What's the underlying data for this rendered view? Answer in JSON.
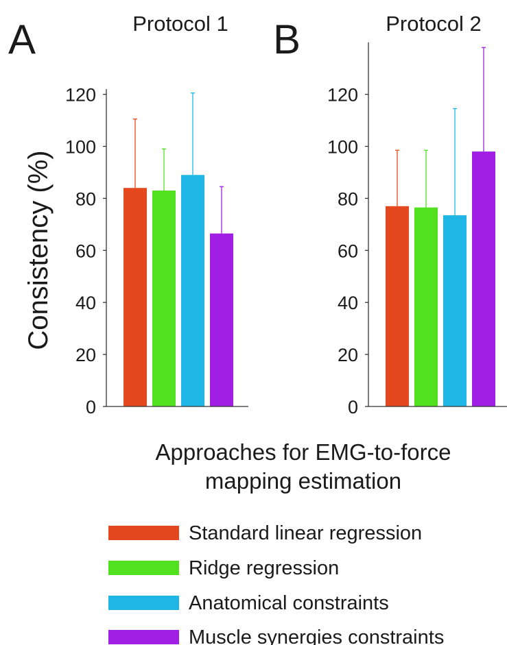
{
  "chart_data": {
    "type": "bar",
    "ylabel": "Consistency (%)",
    "xlabel_lines": [
      "Approaches for EMG-to-force",
      "mapping estimation"
    ],
    "ylim": [
      0,
      140
    ],
    "yticks": [
      0,
      20,
      40,
      60,
      80,
      100,
      120
    ],
    "grid": false,
    "legend_position": "bottom",
    "colors": [
      "#e4481e",
      "#52e11f",
      "#1fb6e6",
      "#a11fe4"
    ],
    "series_names": [
      "Standard linear regression",
      "Ridge regression",
      "Anatomical constraints",
      "Muscle synergies constraints"
    ],
    "panels": [
      {
        "letter": "A",
        "title": "Protocol 1",
        "values": [
          84,
          83,
          89,
          66.5
        ],
        "errors": [
          26.5,
          16,
          31.5,
          18
        ]
      },
      {
        "letter": "B",
        "title": "Protocol 2",
        "values": [
          77,
          76.5,
          73.5,
          98
        ],
        "errors": [
          21.5,
          22,
          41,
          40
        ]
      }
    ]
  }
}
